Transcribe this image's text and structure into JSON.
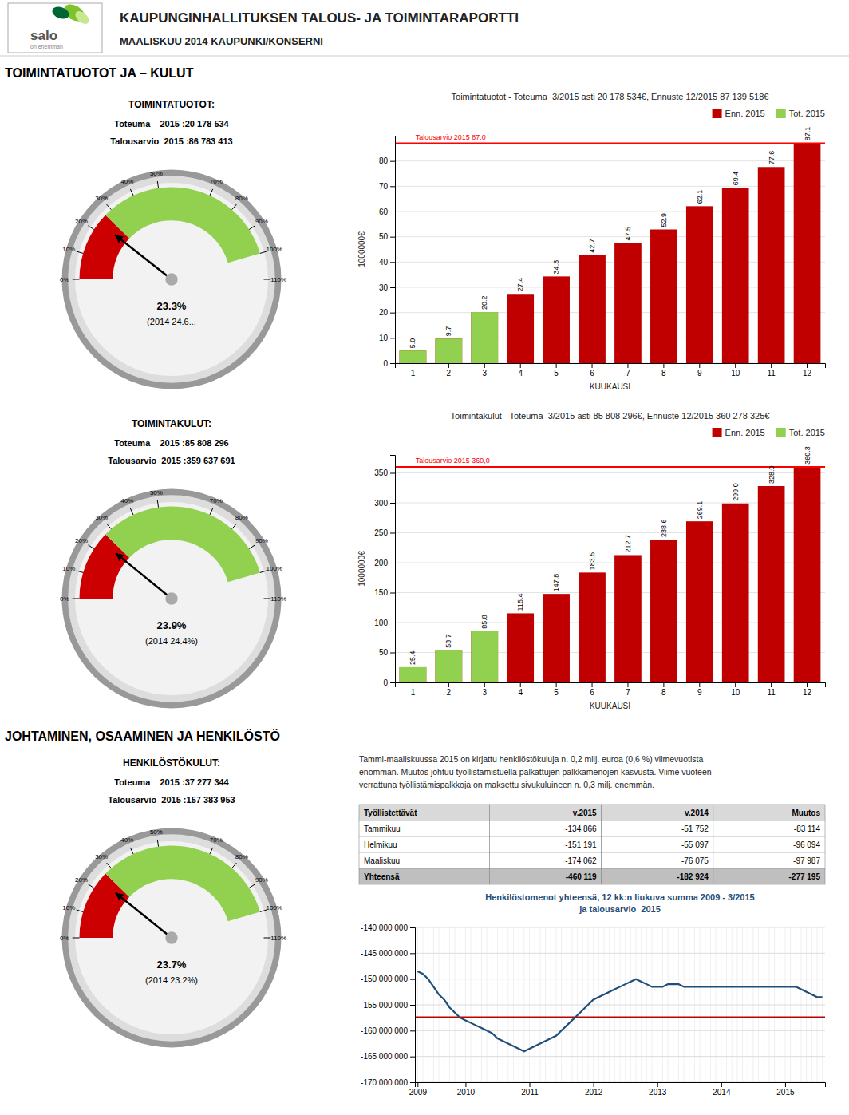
{
  "page": {
    "logo_name": "salo",
    "logo_tagline": "on enemmän",
    "title": "KAUPUNGINHALLITUKSEN TALOUS- JA TOIMINTARAPORTTI",
    "subtitle": "MAALISKUU 2014 KAUPUNKI/KONSERNI",
    "section_titles": [
      "TOIMINTATUOTOT JA – KULUT",
      "JOHTAMINEN, OSAAMINEN JA HENKILÖSTÖ"
    ],
    "text_block": "Tammi-maaliskuussa 2015 on kirjattu henkilöstökuluja n. 0,2 milj. euroa (0,6 %) viimevuotista\nenommän. Muutos johtuu työllistämistuella palkattujen palkkamenojen kasvusta. Viime vuoteen\nverrattuna työllistämispalkkoja on maksettu sivukuluineen n. 0,3 milj. enemmän."
  },
  "chart_data": [
    {
      "type": "gauge",
      "title": "TOIMINTATUOTOT:",
      "annotations": [
        "Toteuma    2015 :20 178 534",
        "Talousarvio  2015 :86 783 413"
      ],
      "values": [
        23.3
      ],
      "value_labels": [
        "23.3%"
      ],
      "subtitle": "(2014 24.6...",
      "ylim": [
        0,
        110
      ],
      "yticks": [
        {
          "value": 0,
          "label": "0%"
        },
        {
          "value": 10,
          "label": "10%"
        },
        {
          "value": 20,
          "label": "20%"
        },
        {
          "value": 30,
          "label": "30%"
        },
        {
          "value": 40,
          "label": "40%"
        },
        {
          "value": 50,
          "label": "50%"
        },
        {
          "value": 70,
          "label": "70%"
        },
        {
          "value": 80,
          "label": "80%"
        },
        {
          "value": 90,
          "label": "90%"
        },
        {
          "value": 100,
          "label": "100%"
        },
        {
          "value": 110,
          "label": "110%"
        }
      ],
      "bands": [
        {
          "from": 0,
          "to": 27,
          "color": "#cc0000"
        },
        {
          "from": 27,
          "to": 100,
          "color": "#92d050"
        }
      ]
    },
    {
      "type": "bar",
      "title": "Toimintatuotot - Toteuma  3/2015 asti 20 178 534€, Ennuste 12/2015 87 139 518€",
      "xlabel": "KUUKAUSI",
      "ylabel": "1000000€",
      "categories": [
        "1",
        "2",
        "3",
        "4",
        "5",
        "6",
        "7",
        "8",
        "9",
        "10",
        "11",
        "12"
      ],
      "series": [
        {
          "name": "Enn. 2015",
          "color": "#c00000",
          "data_labels": true,
          "values": [
            5.0,
            9.7,
            20.2,
            27.4,
            34.3,
            42.7,
            47.5,
            52.9,
            62.1,
            69.4,
            77.6,
            87.1
          ],
          "value_labels": [
            "5.0",
            "9.7",
            "20.2",
            "27.4",
            "34.3",
            "42.7",
            "47.5",
            "52.9",
            "62.1",
            "69.4",
            "77.6",
            "87.1"
          ]
        },
        {
          "name": "Tot. 2015",
          "color": "#92d050",
          "values": [
            5.0,
            9.7,
            20.2,
            null,
            null,
            null,
            null,
            null,
            null,
            null,
            null,
            null
          ]
        }
      ],
      "budget": {
        "value": 87.0,
        "label": "Talousarvio 2015 87,0",
        "color": "red"
      },
      "ylim": [
        0,
        90
      ],
      "yticks": [
        0,
        10,
        20,
        30,
        40,
        50,
        60,
        70,
        80
      ],
      "grid": true,
      "legend": "upper right"
    },
    {
      "type": "gauge",
      "title": "TOIMINTAKULUT:",
      "annotations": [
        "Toteuma    2015 :85 808 296",
        "Talousarvio  2015 :359 637 691"
      ],
      "values": [
        23.9
      ],
      "value_labels": [
        "23.9%"
      ],
      "subtitle": "(2014 24.4%)",
      "ylim": [
        0,
        110
      ],
      "yticks": [
        {
          "value": 0,
          "label": "0%"
        },
        {
          "value": 10,
          "label": "10%"
        },
        {
          "value": 20,
          "label": "20%"
        },
        {
          "value": 30,
          "label": "30%"
        },
        {
          "value": 40,
          "label": "40%"
        },
        {
          "value": 50,
          "label": "50%"
        },
        {
          "value": 70,
          "label": "70%"
        },
        {
          "value": 80,
          "label": "80%"
        },
        {
          "value": 90,
          "label": "90%"
        },
        {
          "value": 100,
          "label": "100%"
        },
        {
          "value": 110,
          "label": "110%"
        }
      ],
      "bands": [
        {
          "from": 0,
          "to": 27,
          "color": "#cc0000"
        },
        {
          "from": 27,
          "to": 100,
          "color": "#92d050"
        }
      ]
    },
    {
      "type": "bar",
      "title": "Toimintakulut - Toteuma  3/2015 asti 85 808 296€, Ennuste 12/2015 360 278 325€",
      "xlabel": "KUUKAUSI",
      "ylabel": "1000000€",
      "categories": [
        "1",
        "2",
        "3",
        "4",
        "5",
        "6",
        "7",
        "8",
        "9",
        "10",
        "11",
        "12"
      ],
      "series": [
        {
          "name": "Enn. 2015",
          "color": "#c00000",
          "data_labels": true,
          "values": [
            25.4,
            53.7,
            85.8,
            115.4,
            147.8,
            183.5,
            212.7,
            238.6,
            269.1,
            299.0,
            328.0,
            360.3
          ],
          "value_labels": [
            "25.4",
            "53.7",
            "85.8",
            "115.4",
            "147.8",
            "183.5",
            "212.7",
            "238.6",
            "269.1",
            "299.0",
            "328.0",
            "360.3"
          ]
        },
        {
          "name": "Tot. 2015",
          "color": "#92d050",
          "values": [
            25.4,
            53.7,
            85.8,
            null,
            null,
            null,
            null,
            null,
            null,
            null,
            null,
            null
          ]
        }
      ],
      "budget": {
        "value": 360.0,
        "label": "Talousarvio 2015 360,0",
        "color": "red"
      },
      "ylim": [
        0,
        380
      ],
      "yticks": [
        0,
        50,
        100,
        150,
        200,
        250,
        300,
        350
      ],
      "grid": true,
      "legend": "upper right"
    },
    {
      "type": "gauge",
      "title": "HENKILÖSTÖKULUT:",
      "annotations": [
        "Toteuma    2015 :37 277 344",
        "Talousarvio  2015 :157 383 953"
      ],
      "values": [
        23.7
      ],
      "value_labels": [
        "23.7%"
      ],
      "subtitle": "(2014 23.2%)",
      "ylim": [
        0,
        110
      ],
      "yticks": [
        {
          "value": 0,
          "label": "0%"
        },
        {
          "value": 10,
          "label": "10%"
        },
        {
          "value": 20,
          "label": "20%"
        },
        {
          "value": 30,
          "label": "30%"
        },
        {
          "value": 40,
          "label": "40%"
        },
        {
          "value": 50,
          "label": "50%"
        },
        {
          "value": 70,
          "label": "70%"
        },
        {
          "value": 80,
          "label": "80%"
        },
        {
          "value": 90,
          "label": "90%"
        },
        {
          "value": 100,
          "label": "100%"
        },
        {
          "value": 110,
          "label": "110%"
        }
      ],
      "bands": [
        {
          "from": 0,
          "to": 27,
          "color": "#cc0000"
        },
        {
          "from": 27,
          "to": 100,
          "color": "#92d050"
        }
      ]
    },
    {
      "type": "table",
      "columns": [
        "Työllistettävät",
        "v.2015",
        "v.2014",
        "Muutos"
      ],
      "rows": [
        [
          "Tammikuu",
          "-134 866",
          "-51 752",
          "-83 114"
        ],
        [
          "Helmikuu",
          "-151 191",
          "-55 097",
          "-96 094"
        ],
        [
          "Maaliskuu",
          "-174 062",
          "-76 075",
          "-97 987"
        ],
        [
          "Yhteensä",
          "-460 119",
          "-182 924",
          "-277 195"
        ]
      ]
    },
    {
      "type": "line",
      "title": "Henkilöstomenot yhteensä, 12 kk:n liukuva summa 2009 - 3/2015\nja talousarvio  2015",
      "categories": [
        "2009",
        null,
        null,
        null,
        null,
        null,
        null,
        null,
        null,
        "2010",
        null,
        null,
        null,
        null,
        null,
        null,
        null,
        null,
        null,
        null,
        null,
        "2011",
        null,
        null,
        null,
        null,
        null,
        null,
        null,
        null,
        null,
        null,
        null,
        "2012",
        null,
        null,
        null,
        null,
        null,
        null,
        null,
        null,
        null,
        null,
        null,
        "2013",
        null,
        null,
        null,
        null,
        null,
        null,
        null,
        null,
        null,
        null,
        null,
        "2014",
        null,
        null,
        null,
        null,
        null,
        null,
        null,
        null,
        null,
        null,
        null,
        "2015",
        null,
        null,
        null,
        null,
        null,
        null,
        null
      ],
      "values": [
        -148500000,
        -149000000,
        -150000000,
        -151500000,
        -153000000,
        -154000000,
        -155500000,
        -156500000,
        -157500000,
        -158000000,
        -158500000,
        -159000000,
        -159500000,
        -160000000,
        -160500000,
        -161500000,
        -162000000,
        -162500000,
        -163000000,
        -163500000,
        -164000000,
        -163500000,
        -163000000,
        -162500000,
        -162000000,
        -161500000,
        -161000000,
        -160000000,
        -159000000,
        -158000000,
        -157000000,
        -156000000,
        -155000000,
        -154000000,
        -153500000,
        -153000000,
        -152500000,
        -152000000,
        -151500000,
        -151000000,
        -150500000,
        -150000000,
        -150500000,
        -151000000,
        -151500000,
        -151500000,
        -151500000,
        -151000000,
        -151000000,
        -151000000,
        -151500000,
        -151500000,
        -151500000,
        -151500000,
        -151500000,
        -151500000,
        -151500000,
        -151500000,
        -151500000,
        -151500000,
        -151500000,
        -151500000,
        -151500000,
        -151500000,
        -151500000,
        -151500000,
        -151500000,
        -151500000,
        -151500000,
        -151500000,
        -151500000,
        -151500000,
        -152000000,
        -152500000,
        -153000000,
        -153500000,
        -153500000
      ],
      "color": "#1f4e79",
      "budget": {
        "value": -157383953,
        "color": "#c00000"
      },
      "ylim": [
        -170000000,
        -140000000
      ],
      "yticks": [
        {
          "value": -170000000,
          "label": "-170 000 000"
        },
        {
          "value": -165000000,
          "label": "-165 000 000"
        },
        {
          "value": -160000000,
          "label": "-160 000 000"
        },
        {
          "value": -155000000,
          "label": "-155 000 000"
        },
        {
          "value": -150000000,
          "label": "-150 000 000"
        },
        {
          "value": -145000000,
          "label": "-145 000 000"
        },
        {
          "value": -140000000,
          "label": "-140 000 000"
        }
      ],
      "grid": true
    }
  ]
}
